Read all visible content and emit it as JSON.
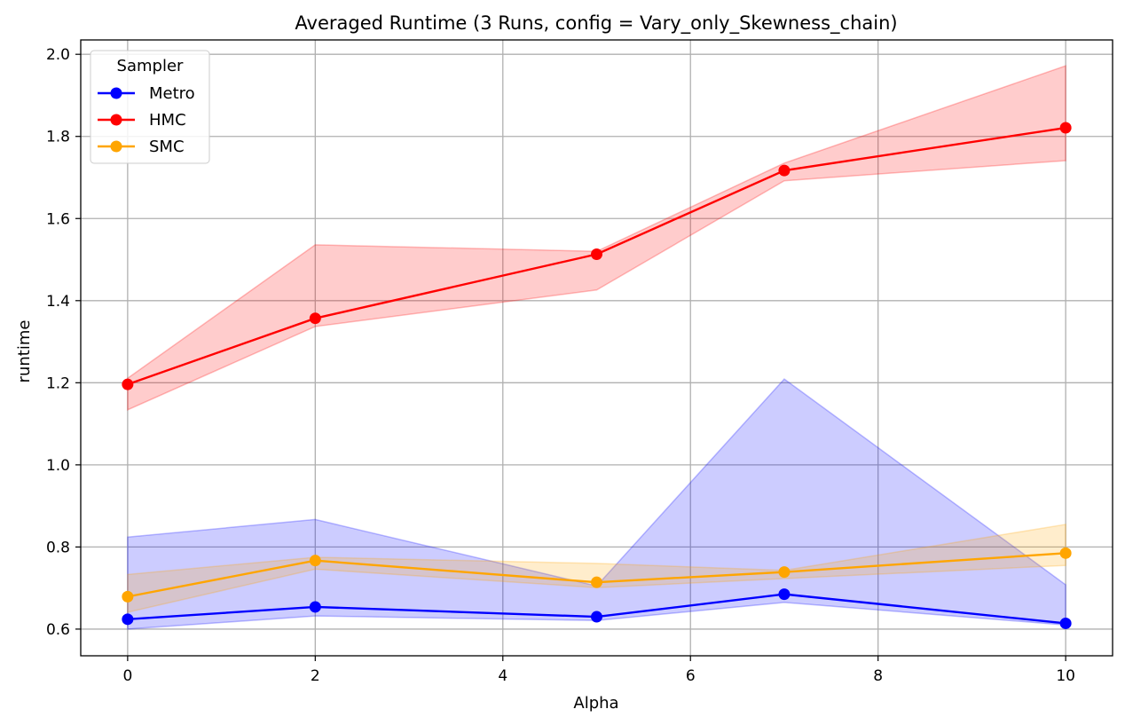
{
  "chart_data": {
    "type": "line",
    "title": "Averaged Runtime (3 Runs, config = Vary_only_Skewness_chain)",
    "xlabel": "Alpha",
    "ylabel": "runtime",
    "x": [
      0,
      2,
      5,
      7,
      10
    ],
    "xlim": [
      -0.5,
      10.5
    ],
    "ylim": [
      0.535,
      2.035
    ],
    "xticks": [
      0,
      2,
      4,
      6,
      8,
      10
    ],
    "yticks": [
      0.6,
      0.8,
      1.0,
      1.2,
      1.4,
      1.6,
      1.8,
      2.0
    ],
    "xtick_labels": [
      "0",
      "2",
      "4",
      "6",
      "8",
      "10"
    ],
    "ytick_labels": [
      "0.6",
      "0.8",
      "1.0",
      "1.2",
      "1.4",
      "1.6",
      "1.8",
      "2.0"
    ],
    "grid": true,
    "legend": {
      "title": "Sampler",
      "placement": "top-left"
    },
    "series": [
      {
        "name": "Metro",
        "color": "#0000ff",
        "values": [
          0.624,
          0.654,
          0.63,
          0.685,
          0.614
        ],
        "band_low": [
          0.6,
          0.632,
          0.621,
          0.665,
          0.61
        ],
        "band_high": [
          0.824,
          0.867,
          0.705,
          1.209,
          0.708
        ]
      },
      {
        "name": "HMC",
        "color": "#ff0000",
        "values": [
          1.196,
          1.357,
          1.513,
          1.717,
          1.821
        ],
        "band_low": [
          1.134,
          1.337,
          1.426,
          1.692,
          1.741
        ],
        "band_high": [
          1.211,
          1.536,
          1.52,
          1.735,
          1.972
        ]
      },
      {
        "name": "SMC",
        "color": "#ffa500",
        "values": [
          0.679,
          0.767,
          0.714,
          0.739,
          0.785
        ],
        "band_low": [
          0.641,
          0.746,
          0.701,
          0.723,
          0.755
        ],
        "band_high": [
          0.733,
          0.775,
          0.76,
          0.743,
          0.855
        ]
      }
    ]
  }
}
